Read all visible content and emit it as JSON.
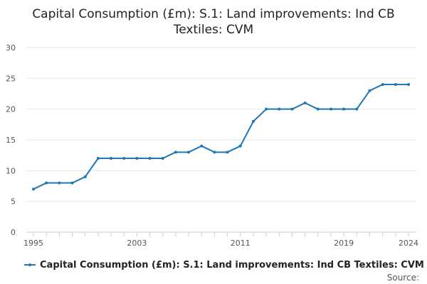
{
  "title_lines": [
    "Capital Consumption (£m): S.1: Land improvements: Ind CB",
    "Textiles: CVM"
  ],
  "source_label": "Source:",
  "colors": {
    "series": "#1f77b4",
    "grid": "#e6e6e6",
    "axis": "#cccccc"
  },
  "chart_data": {
    "type": "line",
    "title": "Capital Consumption (£m): S.1: Land improvements: Ind CB Textiles: CVM",
    "xlabel": "",
    "ylabel": "",
    "x": [
      1995,
      1996,
      1997,
      1998,
      1999,
      2000,
      2001,
      2002,
      2003,
      2004,
      2005,
      2006,
      2007,
      2008,
      2009,
      2010,
      2011,
      2012,
      2013,
      2014,
      2015,
      2016,
      2017,
      2018,
      2019,
      2020,
      2021,
      2022,
      2023,
      2024
    ],
    "series": [
      {
        "name": "Capital Consumption (£m): S.1: Land improvements: Ind CB Textiles: CVM",
        "values": [
          7,
          8,
          8,
          8,
          9,
          12,
          12,
          12,
          12,
          12,
          12,
          13,
          13,
          14,
          13,
          13,
          14,
          18,
          20,
          20,
          20,
          21,
          20,
          20,
          20,
          20,
          23,
          24,
          24,
          24
        ]
      }
    ],
    "xlim": [
      1995,
      2024
    ],
    "ylim": [
      0,
      30
    ],
    "x_tick_labels": [
      "1995",
      "2003",
      "2011",
      "2019",
      "2024"
    ],
    "y_tick_labels": [
      "0",
      "5",
      "10",
      "15",
      "20",
      "25",
      "30"
    ],
    "grid": true,
    "legend": "bottom"
  }
}
